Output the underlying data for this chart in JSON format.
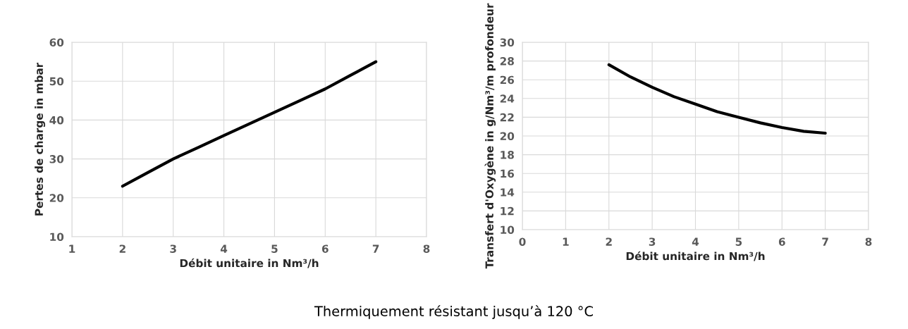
{
  "chart_data": [
    {
      "type": "line",
      "xlabel": "Débit unitaire in Nm³/h",
      "ylabel": "Pertes de charge in mbar",
      "xlim": [
        1,
        8
      ],
      "xticks": [
        1,
        2,
        3,
        4,
        5,
        6,
        7,
        8
      ],
      "ylim": [
        10,
        60
      ],
      "yticks": [
        10,
        20,
        30,
        40,
        50,
        60
      ],
      "grid": true,
      "legend": false,
      "x": [
        2,
        2.5,
        3,
        3.5,
        4,
        4.5,
        5,
        5.5,
        6,
        6.5,
        7
      ],
      "series": [
        {
          "color": "#000000",
          "values": [
            23,
            26.5,
            30,
            33,
            36,
            39,
            42,
            45,
            48,
            51.5,
            55
          ]
        }
      ]
    },
    {
      "type": "line",
      "xlabel": "Débit unitaire in Nm³/h",
      "ylabel": "Transfert d'Oxygène in g/Nm³/m profondeur",
      "xlim": [
        0,
        8
      ],
      "xticks": [
        0,
        1,
        2,
        3,
        4,
        5,
        6,
        7,
        8
      ],
      "ylim": [
        10,
        30
      ],
      "yticks": [
        10,
        12,
        14,
        16,
        18,
        20,
        22,
        24,
        26,
        28,
        30
      ],
      "grid": true,
      "legend": false,
      "x": [
        2,
        2.5,
        3,
        3.5,
        4,
        4.5,
        5,
        5.5,
        6,
        6.5,
        7
      ],
      "series": [
        {
          "color": "#000000",
          "values": [
            27.6,
            26.3,
            25.2,
            24.2,
            23.4,
            22.6,
            22.0,
            21.4,
            20.9,
            20.5,
            20.3
          ]
        }
      ],
      "annotations": [
        "Thermiquement résistant jusqu’à 120 °C"
      ]
    }
  ]
}
